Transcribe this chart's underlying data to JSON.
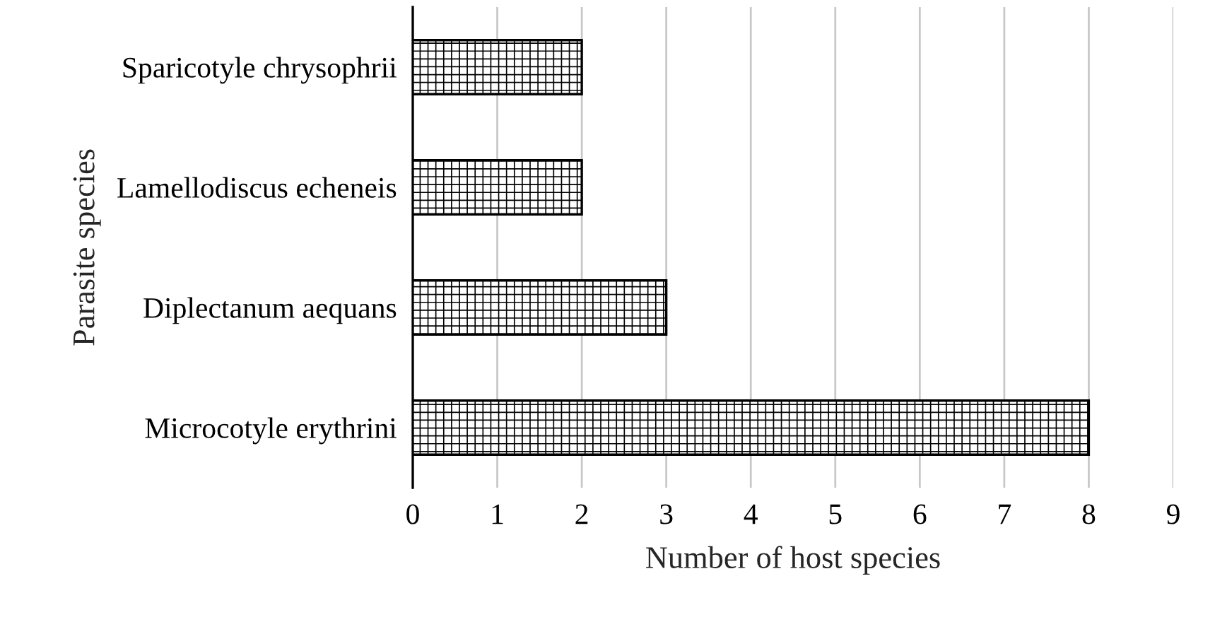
{
  "chart_data": {
    "type": "bar",
    "orientation": "horizontal",
    "xlabel": "Number of host species",
    "ylabel": "Parasite species",
    "categories": [
      "Sparicotyle chrysophrii",
      "Lamellodiscus echeneis",
      "Diplectanum aequans",
      "Microcotyle erythrini"
    ],
    "values": [
      2,
      2,
      3,
      8
    ],
    "color": "#000000",
    "xlim": [
      0,
      9
    ],
    "xticks": [
      0,
      1,
      2,
      3,
      4,
      5,
      6,
      7,
      8,
      9
    ],
    "grid": "x"
  }
}
